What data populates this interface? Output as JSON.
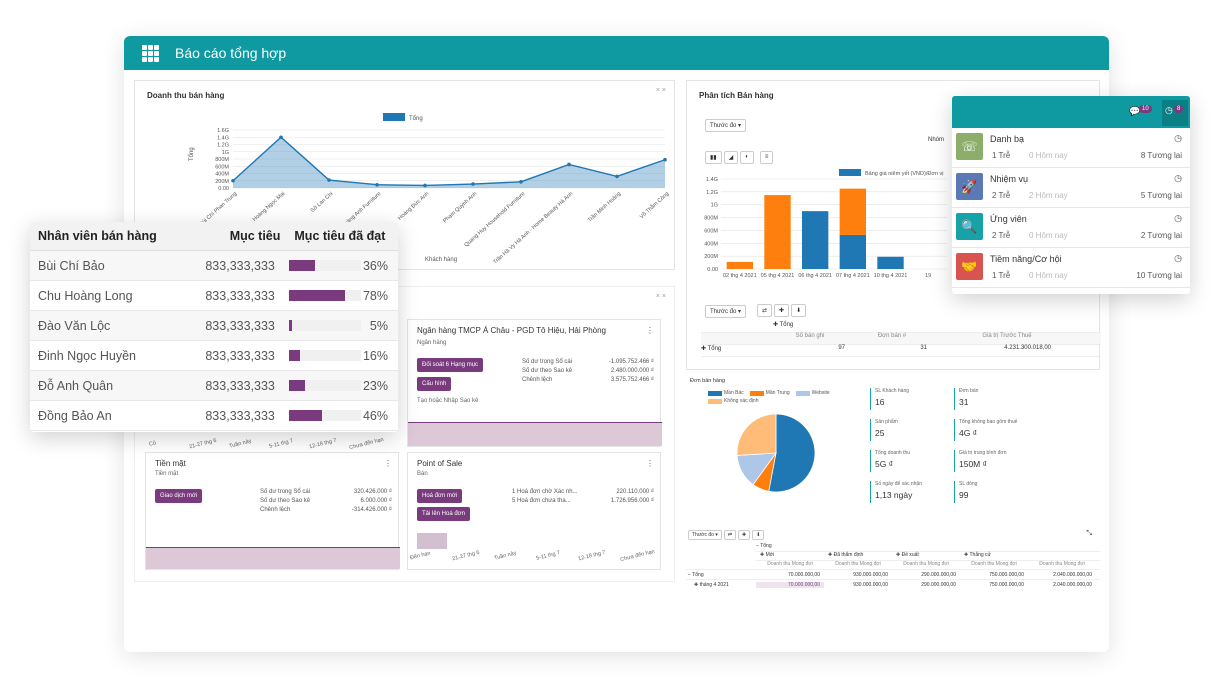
{
  "app": {
    "title": "Báo cáo tổng hợp"
  },
  "sales_revenue": {
    "title": "Doanh thu bán hàng",
    "close": "× ×",
    "legend": "Tổng",
    "ylabel": "Tổng",
    "xlabel": "Khách hàng",
    "chart_data": {
      "type": "line",
      "title": "Doanh thu bán hàng",
      "ylabel": "Tổng",
      "xlabel": "Khách hàng",
      "ylim": [
        0,
        1600000000
      ],
      "y_ticks": [
        "1.6G",
        "1.4G",
        "1.2G",
        "1G",
        "800M",
        "600M",
        "400M",
        "200M",
        "0.00"
      ],
      "categories": [
        "Bùi Chí Phan Trung",
        "Hoàng Ngọc Mai",
        "Sở Lan Chi",
        "Hoàng Anh Furniture",
        "Hoàng Đức Anh",
        "Phạm Quỳnh Anh",
        "Quang Huy Household Furniture",
        "Trần Hà Vy Hà Anh - Home Beauty Hà Anh",
        "Trần Minh Hoàng",
        "Võ Thắm Công"
      ],
      "series": [
        {
          "name": "Tổng",
          "values": [
            200000000,
            1400000000,
            220000000,
            90000000,
            70000000,
            110000000,
            170000000,
            650000000,
            320000000,
            780000000
          ]
        }
      ]
    }
  },
  "sales_analysis": {
    "title": "Phân tích Bán hàng",
    "measure_btn": "Thước đo ▾",
    "group_label": "Nhóm",
    "legend": "Bảng giá niêm yết (VND)/Đơn vị",
    "chart_data": {
      "type": "bar",
      "categories": [
        "02 thg 4 2021",
        "05 thg 4 2021",
        "06 thg 4 2021",
        "07 thg 4 2021",
        "10 thg 4 2021",
        "19"
      ],
      "y_ticks": [
        "1.4G",
        "1.2G",
        "1G",
        "800M",
        "600M",
        "400M",
        "200M",
        "0.00"
      ],
      "ylim": [
        0,
        1400000000
      ],
      "series": [
        {
          "name": "Bảng giá niêm yết (VND)/Đơn vị",
          "values": [
            0,
            0,
            900000000,
            530000000,
            190000000,
            0
          ]
        },
        {
          "name": "orange",
          "values": [
            110000000,
            1150000000,
            0,
            720000000,
            0,
            0
          ]
        }
      ]
    },
    "pivot": {
      "measure_btn": "Thước đo ▾",
      "col_header": "Tổng",
      "cols": [
        "Số bán ghi",
        "Đơn bán #",
        "Giá trị Trước Thuế"
      ],
      "row_label": "Tổng",
      "values": [
        "97",
        "31",
        "4.231.300.018,00"
      ]
    }
  },
  "salespeople": {
    "headers": [
      "Nhân viên bán hàng",
      "Mục tiêu",
      "Mục tiêu đã đạt"
    ],
    "rows": [
      {
        "name": "Bùi Chí Bảo",
        "target": "833,333,333",
        "pct": "36%",
        "fill": 0.36
      },
      {
        "name": "Chu Hoàng Long",
        "target": "833,333,333",
        "pct": "78%",
        "fill": 0.78
      },
      {
        "name": "Đào Văn Lộc",
        "target": "833,333,333",
        "pct": "5%",
        "fill": 0.05
      },
      {
        "name": "Đinh Ngọc Huyền",
        "target": "833,333,333",
        "pct": "16%",
        "fill": 0.16
      },
      {
        "name": "Đỗ Anh Quân",
        "target": "833,333,333",
        "pct": "23%",
        "fill": 0.23
      },
      {
        "name": "Đồng Bảo An",
        "target": "833,333,333",
        "pct": "46%",
        "fill": 0.46
      }
    ]
  },
  "bank": {
    "title": "Ngân hàng TMCP Á Châu - PGD Tô Hiệu, Hải Phòng",
    "subtitle": "Ngân hàng",
    "btn1": "Đối soát 6 Hạng mục",
    "btn2": "Cấu hình",
    "link": "Tạo hoặc Nhập Sao kê",
    "lines": [
      {
        "label": "Số dư trong Sổ cái",
        "value": "-1.095.752.466 ₫"
      },
      {
        "label": "Số dư theo Sao kê",
        "value": "2.480.000.000 ₫"
      },
      {
        "label": "Chênh lệch",
        "value": "3.575.752.466 ₫"
      }
    ]
  },
  "cash": {
    "title": "Tiền mặt",
    "subtitle": "Tiền mặt",
    "btn": "Giao dịch mới",
    "lines": [
      {
        "label": "Số dư trong Sổ cái",
        "value": "320.426.000 ₫"
      },
      {
        "label": "Số dư theo Sao kê",
        "value": "6.000.000 ₫"
      },
      {
        "label": "Chênh lệch",
        "value": "-314.426.000 ₫"
      }
    ]
  },
  "pos": {
    "title": "Point of Sale",
    "subtitle": "Bán",
    "btn1": "Hoá đơn mới",
    "btn2": "Tải lên Hoá đơn",
    "lines": [
      {
        "label": "1 Hoá đơn chờ Xác nh...",
        "value": "220.110.000 ₫"
      },
      {
        "label": "5 Hoá đơn chưa tha...",
        "value": "1.726.956.000 ₫"
      }
    ],
    "xticks": [
      "Đến hạn",
      "21-27 thg 6",
      "Tuần này",
      "5-11 thg 7",
      "12-18 thg 7",
      "Chưa đến hạn"
    ]
  },
  "left_axis_ticks": [
    "Cũ",
    "21-27 thg 6",
    "Tuần này",
    "5-11 thg 7",
    "12-18 thg 7",
    "Chưa đến hạn"
  ],
  "orders": {
    "title": "Đơn bán hàng",
    "chart_data": {
      "type": "pie",
      "categories": [
        "Mần Bác",
        "Mần Trung",
        "Website",
        "Không xác định"
      ],
      "values": [
        53,
        7,
        14,
        26
      ]
    },
    "colors": {
      "Mần Bác": "#1f77b4",
      "Mần Trung": "#ff7f0e",
      "Website": "#aec7e8",
      "Không xác định": "#ffbb78"
    },
    "kpis": [
      {
        "label": "SL Khách hàng",
        "value": "16"
      },
      {
        "label": "Đơn bán",
        "value": "31"
      },
      {
        "label": "Sản phẩm",
        "value": "25"
      },
      {
        "label": "Tổng không bao gồm thuế",
        "value": "4G ₫"
      },
      {
        "label": "Tổng doanh thu",
        "value": "5G ₫"
      },
      {
        "label": "Giá trị trung bình đơn",
        "value": "150M ₫"
      },
      {
        "label": "Số ngày để xác nhận",
        "value": "1,13 ngày"
      },
      {
        "label": "SL dòng",
        "value": "99"
      }
    ]
  },
  "pivot2": {
    "measure_btn": "Thước đo ▾",
    "total": "Tổng",
    "groups": [
      "Mới",
      "Đã thẩm định",
      "Đề xuất",
      "Thắng cử"
    ],
    "subcol": "Doanh thu Mong đợi",
    "rows": [
      {
        "label": "Tổng",
        "values": [
          "70.000.000,00",
          "930.000.000,00",
          "290.000.000,00",
          "750.000.000,00",
          "2.040.000.000,00"
        ]
      },
      {
        "label": "tháng 4 2021",
        "values": [
          "70.000.000,00",
          "930.000.000,00",
          "290.000.000,00",
          "750.000.000,00",
          "2.040.000.000,00"
        ]
      }
    ]
  },
  "activities": {
    "chat_count": "10",
    "clock_count": "8",
    "items": [
      {
        "name": "Danh bạ",
        "late": "1 Trễ",
        "today": "0 Hôm nay",
        "future": "8 Tương lai",
        "color": "#8cae6a"
      },
      {
        "name": "Nhiệm vụ",
        "late": "2 Trễ",
        "today": "2 Hôm nay",
        "future": "5 Tương lai",
        "color": "#5b7ab5"
      },
      {
        "name": "Ứng viên",
        "late": "2 Trễ",
        "today": "0 Hôm nay",
        "future": "2 Tương lai",
        "color": "#17a2a8"
      },
      {
        "name": "Tiềm năng/Cơ hội",
        "late": "1 Trễ",
        "today": "0 Hôm nay",
        "future": "10 Tương lai",
        "color": "#d9534f"
      }
    ]
  }
}
